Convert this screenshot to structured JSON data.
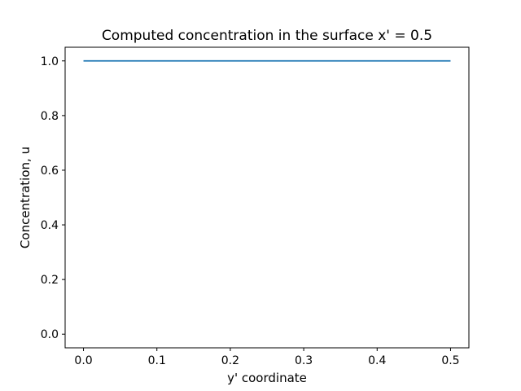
{
  "chart_data": {
    "type": "line",
    "title": "Computed concentration in the surface x' = 0.5",
    "xlabel": "y' coordinate",
    "ylabel": "Concentration, u",
    "xlim": [
      -0.025,
      0.525
    ],
    "ylim": [
      -0.05,
      1.05
    ],
    "xticks": [
      0.0,
      0.1,
      0.2,
      0.3,
      0.4,
      0.5
    ],
    "xtick_labels": [
      "0.0",
      "0.1",
      "0.2",
      "0.3",
      "0.4",
      "0.5"
    ],
    "yticks": [
      0.0,
      0.2,
      0.4,
      0.6,
      0.8,
      1.0
    ],
    "ytick_labels": [
      "0.0",
      "0.2",
      "0.4",
      "0.6",
      "0.8",
      "1.0"
    ],
    "grid": false,
    "series": [
      {
        "color": "#1f77b4",
        "x": [
          0.0,
          0.5
        ],
        "y": [
          1.0,
          1.0
        ]
      }
    ]
  }
}
